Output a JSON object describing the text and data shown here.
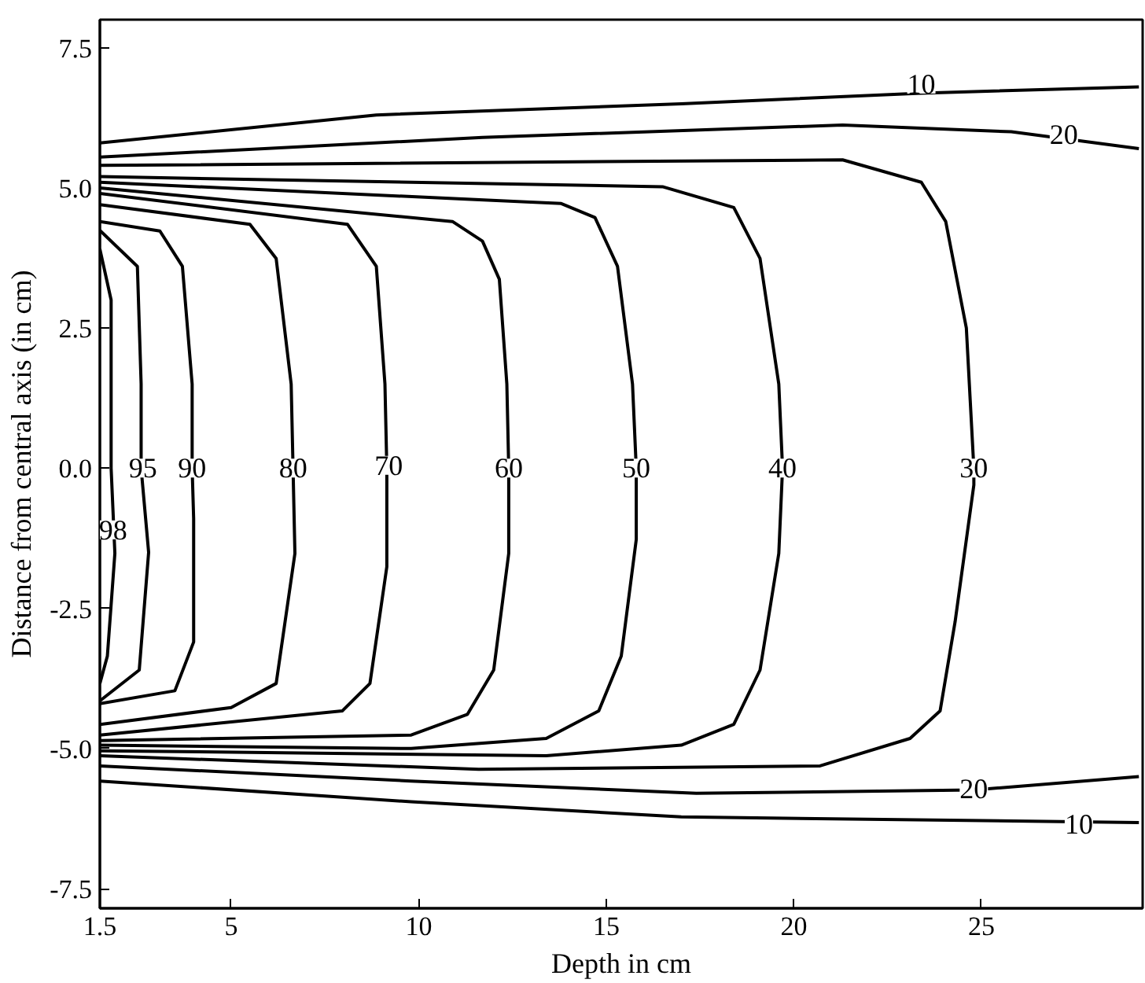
{
  "chart_data": {
    "type": "line",
    "xlabel": "Depth in cm",
    "ylabel": "Distance from central axis (in cm)",
    "xlim": [
      1.5,
      29.3
    ],
    "ylim": [
      -7.85,
      8.0
    ],
    "xticks": [
      1.5,
      5,
      10,
      15,
      20,
      25
    ],
    "yticks": [
      {
        "value": -7.5,
        "label": "-7.5"
      },
      {
        "value": -5,
        "label": "-5.0"
      },
      {
        "value": -2.5,
        "label": "-2.5"
      },
      {
        "value": 0,
        "label": "0.0"
      },
      {
        "value": 2.5,
        "label": "2.5"
      },
      {
        "value": 5,
        "label": "5.0"
      },
      {
        "value": 7.5,
        "label": "7.5"
      }
    ],
    "grid": false,
    "marker": "none",
    "line_style": "solid",
    "series": [
      {
        "color": "#000000",
        "x": [
          1.5,
          8.87,
          17.0,
          23.4,
          29.2
        ],
        "values": [
          5.8,
          6.3,
          6.5,
          6.69,
          6.8
        ]
      },
      {
        "color": "#000000",
        "x": [
          1.5,
          11.7,
          21.3,
          25.8,
          29.2
        ],
        "values": [
          5.55,
          5.9,
          6.12,
          6.0,
          5.7
        ]
      },
      {
        "color": "#000000",
        "x": [
          1.5,
          9.8,
          17.0,
          29.2
        ],
        "values": [
          -5.58,
          -5.95,
          -6.22,
          -6.32
        ]
      },
      {
        "color": "#000000",
        "x": [
          1.5,
          9.8,
          17.4,
          24.8,
          29.2
        ],
        "values": [
          -5.31,
          -5.58,
          -5.8,
          -5.74,
          -5.5
        ]
      },
      {
        "color": "#000000",
        "x": [
          1.5,
          21.3,
          23.4,
          24.05,
          24.6,
          24.8,
          24.8,
          24.3,
          23.9,
          23.1,
          20.7,
          11.6,
          1.5
        ],
        "values": [
          5.4,
          5.5,
          5.1,
          4.4,
          2.5,
          0.0,
          -0.3,
          -2.74,
          -4.33,
          -4.82,
          -5.31,
          -5.37,
          -5.13
        ]
      },
      {
        "color": "#000000",
        "x": [
          1.5,
          16.5,
          18.4,
          19.1,
          19.6,
          19.7,
          19.6,
          19.1,
          18.4,
          17.0,
          13.4,
          1.5
        ],
        "values": [
          5.2,
          5.02,
          4.65,
          3.74,
          1.5,
          0.0,
          -1.52,
          -3.6,
          -4.57,
          -4.94,
          -5.13,
          -5.04
        ]
      },
      {
        "color": "#000000",
        "x": [
          1.5,
          13.8,
          14.7,
          15.3,
          15.7,
          15.8,
          15.8,
          15.4,
          14.8,
          13.4,
          9.8,
          1.5
        ],
        "values": [
          5.1,
          4.72,
          4.47,
          3.6,
          1.5,
          0.0,
          -1.27,
          -3.35,
          -4.33,
          -4.82,
          -5.0,
          -4.94
        ]
      },
      {
        "color": "#000000",
        "x": [
          1.5,
          10.9,
          11.7,
          12.15,
          12.35,
          12.4,
          12.4,
          12.0,
          11.3,
          9.8,
          1.5
        ],
        "values": [
          5.0,
          4.4,
          4.05,
          3.37,
          1.5,
          0.0,
          -1.52,
          -3.6,
          -4.39,
          -4.76,
          -4.86
        ]
      },
      {
        "color": "#000000",
        "x": [
          1.5,
          8.1,
          8.87,
          9.1,
          9.15,
          9.15,
          8.7,
          7.96,
          1.5
        ],
        "values": [
          4.9,
          4.35,
          3.6,
          1.5,
          0.0,
          -1.76,
          -3.84,
          -4.33,
          -4.76
        ]
      },
      {
        "color": "#000000",
        "x": [
          1.5,
          5.5,
          6.2,
          6.6,
          6.65,
          6.7,
          6.2,
          5.0,
          1.5
        ],
        "values": [
          4.7,
          4.35,
          3.74,
          1.5,
          0.0,
          -1.52,
          -3.84,
          -4.27,
          -4.57
        ]
      },
      {
        "color": "#000000",
        "x": [
          1.5,
          3.1,
          3.7,
          3.96,
          3.96,
          4.0,
          4.0,
          3.5,
          1.5
        ],
        "values": [
          4.4,
          4.23,
          3.6,
          1.5,
          0.0,
          -0.9,
          -3.1,
          -3.97,
          -4.2
        ]
      },
      {
        "color": "#000000",
        "x": [
          1.5,
          2.5,
          2.6,
          2.6,
          2.8,
          2.55,
          1.5
        ],
        "values": [
          4.24,
          3.6,
          1.5,
          0.0,
          -1.5,
          -3.6,
          -4.15
        ]
      },
      {
        "color": "#000000",
        "x": [
          1.5,
          1.8,
          1.8,
          1.9,
          1.7,
          1.5
        ],
        "values": [
          3.91,
          3.0,
          0.0,
          -1.52,
          -3.35,
          -3.84
        ]
      }
    ],
    "annotations": [
      {
        "text": "10",
        "x": 23.4,
        "y": 6.85
      },
      {
        "text": "20",
        "x": 27.2,
        "y": 5.95
      },
      {
        "text": "30",
        "x": 24.8,
        "y": 0.0
      },
      {
        "text": "40",
        "x": 19.7,
        "y": 0.0
      },
      {
        "text": "50",
        "x": 15.8,
        "y": 0.0
      },
      {
        "text": "60",
        "x": 12.4,
        "y": 0.0
      },
      {
        "text": "70",
        "x": 9.2,
        "y": 0.05
      },
      {
        "text": "80",
        "x": 6.65,
        "y": 0.0
      },
      {
        "text": "90",
        "x": 3.96,
        "y": 0.0
      },
      {
        "text": "95",
        "x": 2.65,
        "y": 0.0
      },
      {
        "text": "98",
        "x": 1.85,
        "y": -1.1
      },
      {
        "text": "20",
        "x": 24.8,
        "y": -5.72
      },
      {
        "text": "10",
        "x": 27.6,
        "y": -6.35
      }
    ]
  }
}
